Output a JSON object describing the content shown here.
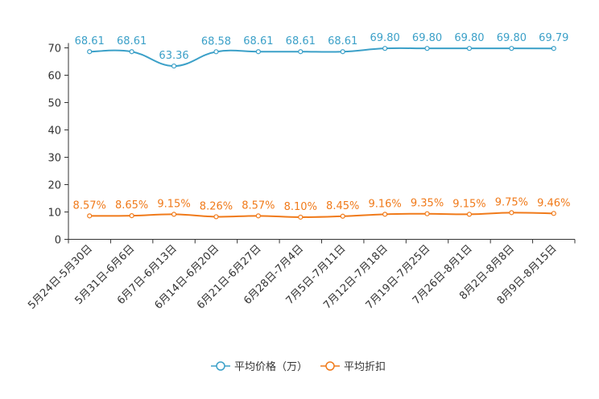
{
  "chart_data": {
    "type": "line",
    "categories": [
      "5月24日-5月30日",
      "5月31日-6月6日",
      "6月7日-6月13日",
      "6月14日-6月20日",
      "6月21日-6月27日",
      "6月28日-7月4日",
      "7月5日-7月11日",
      "7月12日-7月18日",
      "7月19日-7月25日",
      "7月26日-8月1日",
      "8月2日-8月8日",
      "8月9日-8月15日"
    ],
    "series": [
      {
        "name": "平均价格（万）",
        "color": "#3ba0c8",
        "values": [
          68.61,
          68.61,
          63.36,
          68.58,
          68.61,
          68.61,
          68.61,
          69.8,
          69.8,
          69.8,
          69.8,
          69.79
        ],
        "labels": [
          "68.61",
          "68.61",
          "63.36",
          "68.58",
          "68.61",
          "68.61",
          "68.61",
          "69.80",
          "69.80",
          "69.80",
          "69.80",
          "69.79"
        ]
      },
      {
        "name": "平均折扣",
        "color": "#f07a1a",
        "values": [
          8.57,
          8.65,
          9.15,
          8.26,
          8.57,
          8.1,
          8.45,
          9.16,
          9.35,
          9.15,
          9.75,
          9.46
        ],
        "labels": [
          "8.57%",
          "8.65%",
          "9.15%",
          "8.26%",
          "8.57%",
          "8.10%",
          "8.45%",
          "9.16%",
          "9.35%",
          "9.15%",
          "9.75%",
          "9.46%"
        ]
      }
    ],
    "yticks": [
      "0",
      "10",
      "20",
      "30",
      "40",
      "50",
      "60",
      "70"
    ],
    "ylim": [
      0,
      70
    ],
    "grid": false,
    "legend_position": "bottom-center"
  }
}
